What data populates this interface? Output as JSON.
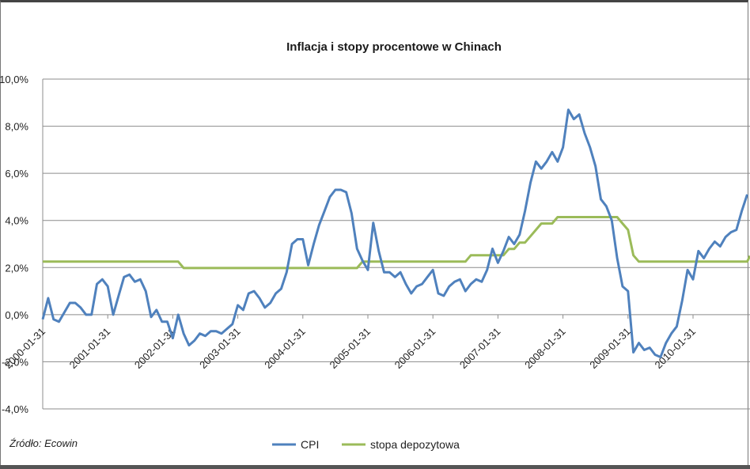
{
  "chart_data": {
    "type": "line",
    "title": "Inflacja i stopy procentowe w Chinach",
    "source": "Źródło: Ecowin",
    "ylim": [
      -4,
      10
    ],
    "y_ticks": [
      "-4,0%",
      "-2,0%",
      "0,0%",
      "2,0%",
      "4,0%",
      "6,0%",
      "8,0%",
      "10,0%"
    ],
    "y_tick_values": [
      -4,
      -2,
      0,
      2,
      4,
      6,
      8,
      10
    ],
    "x_ticks": [
      "2000-01-31",
      "2001-01-31",
      "2002-01-31",
      "2003-01-31",
      "2004-01-31",
      "2005-01-31",
      "2006-01-31",
      "2007-01-31",
      "2008-01-31",
      "2009-01-31",
      "2010-01-31"
    ],
    "x_start": "2000-01",
    "x_end": "2011-02",
    "grid": "horizontal",
    "legend_position": "bottom",
    "series": [
      {
        "name": "CPI",
        "color": "#4f81bd",
        "values": [
          -0.2,
          0.7,
          -0.2,
          -0.3,
          0.1,
          0.5,
          0.5,
          0.3,
          0.0,
          0.0,
          1.3,
          1.5,
          1.2,
          0.0,
          0.8,
          1.6,
          1.7,
          1.4,
          1.5,
          1.0,
          -0.1,
          0.2,
          -0.3,
          -0.3,
          -1.0,
          0.0,
          -0.8,
          -1.3,
          -1.1,
          -0.8,
          -0.9,
          -0.7,
          -0.7,
          -0.8,
          -0.6,
          -0.4,
          0.4,
          0.2,
          0.9,
          1.0,
          0.7,
          0.3,
          0.5,
          0.9,
          1.1,
          1.8,
          3.0,
          3.2,
          3.2,
          2.1,
          3.0,
          3.8,
          4.4,
          5.0,
          5.3,
          5.3,
          5.2,
          4.3,
          2.8,
          2.3,
          1.9,
          3.9,
          2.7,
          1.8,
          1.8,
          1.6,
          1.8,
          1.3,
          0.9,
          1.2,
          1.3,
          1.6,
          1.9,
          0.9,
          0.8,
          1.2,
          1.4,
          1.5,
          1.0,
          1.3,
          1.5,
          1.4,
          1.9,
          2.8,
          2.2,
          2.7,
          3.3,
          3.0,
          3.4,
          4.4,
          5.6,
          6.5,
          6.2,
          6.5,
          6.9,
          6.5,
          7.1,
          8.7,
          8.3,
          8.5,
          7.7,
          7.1,
          6.3,
          4.9,
          4.6,
          4.0,
          2.4,
          1.2,
          1.0,
          -1.6,
          -1.2,
          -1.5,
          -1.4,
          -1.7,
          -1.8,
          -1.2,
          -0.8,
          -0.5,
          0.6,
          1.9,
          1.5,
          2.7,
          2.4,
          2.8,
          3.1,
          2.9,
          3.3,
          3.5,
          3.6,
          4.4,
          5.1
        ]
      },
      {
        "name": "stopa depozytowa",
        "color": "#9bbb59",
        "values": [
          2.25,
          2.25,
          2.25,
          2.25,
          2.25,
          2.25,
          2.25,
          2.25,
          2.25,
          2.25,
          2.25,
          2.25,
          2.25,
          2.25,
          2.25,
          2.25,
          2.25,
          2.25,
          2.25,
          2.25,
          2.25,
          2.25,
          2.25,
          2.25,
          2.25,
          2.25,
          1.98,
          1.98,
          1.98,
          1.98,
          1.98,
          1.98,
          1.98,
          1.98,
          1.98,
          1.98,
          1.98,
          1.98,
          1.98,
          1.98,
          1.98,
          1.98,
          1.98,
          1.98,
          1.98,
          1.98,
          1.98,
          1.98,
          1.98,
          1.98,
          1.98,
          1.98,
          1.98,
          1.98,
          1.98,
          1.98,
          1.98,
          1.98,
          1.98,
          2.25,
          2.25,
          2.25,
          2.25,
          2.25,
          2.25,
          2.25,
          2.25,
          2.25,
          2.25,
          2.25,
          2.25,
          2.25,
          2.25,
          2.25,
          2.25,
          2.25,
          2.25,
          2.25,
          2.25,
          2.52,
          2.52,
          2.52,
          2.52,
          2.52,
          2.52,
          2.52,
          2.79,
          2.79,
          3.06,
          3.06,
          3.33,
          3.6,
          3.87,
          3.87,
          3.87,
          4.14,
          4.14,
          4.14,
          4.14,
          4.14,
          4.14,
          4.14,
          4.14,
          4.14,
          4.14,
          4.14,
          4.14,
          3.87,
          3.6,
          2.52,
          2.25,
          2.25,
          2.25,
          2.25,
          2.25,
          2.25,
          2.25,
          2.25,
          2.25,
          2.25,
          2.25,
          2.25,
          2.25,
          2.25,
          2.25,
          2.25,
          2.25,
          2.25,
          2.25,
          2.25,
          2.25,
          2.5
        ]
      }
    ]
  }
}
